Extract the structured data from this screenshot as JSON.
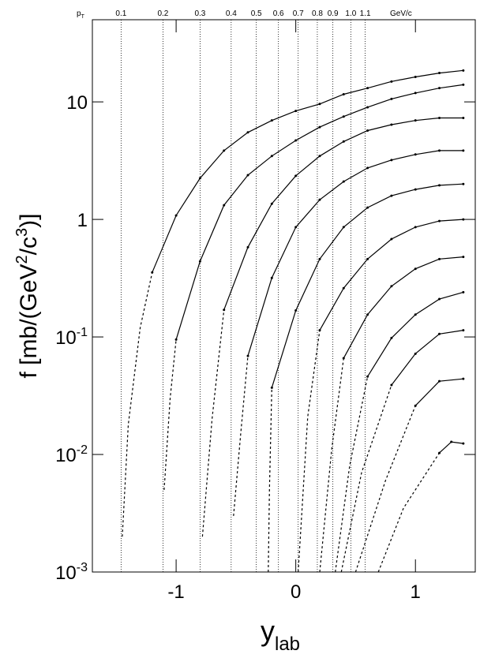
{
  "chart_data": {
    "type": "line",
    "log_y": true,
    "color": "#000000",
    "xlim": [
      -1.7,
      1.5
    ],
    "ylim": [
      0.001,
      50
    ],
    "xticks": [
      -1,
      0,
      1
    ],
    "yticks": [
      {
        "value": 0.001,
        "label": "10",
        "exponent": "-3"
      },
      {
        "value": 0.01,
        "label": "10",
        "exponent": "-2"
      },
      {
        "value": 0.1,
        "label": "10",
        "exponent": "-1"
      },
      1,
      10
    ],
    "ylabel_parts": [
      "f [mb/(GeV",
      "2",
      "/c",
      "3",
      ")]"
    ],
    "xlabel": "y",
    "xlabel_sub": "lab",
    "pt_title": "p",
    "pt_title_sub": "T",
    "pt_unit": "GeV/c",
    "pt_lines": [
      {
        "x": -1.46,
        "label": "0.1"
      },
      {
        "x": -1.11,
        "label": "0.2"
      },
      {
        "x": -0.8,
        "label": "0.3"
      },
      {
        "x": -0.54,
        "label": "0.4"
      },
      {
        "x": -0.33,
        "label": "0.5"
      },
      {
        "x": -0.145,
        "label": "0.6"
      },
      {
        "x": 0.02,
        "label": "0.7"
      },
      {
        "x": 0.18,
        "label": "0.8"
      },
      {
        "x": 0.31,
        "label": "0.9"
      },
      {
        "x": 0.46,
        "label": "1.0"
      },
      {
        "x": 0.58,
        "label": "1.1"
      }
    ],
    "series": [
      {
        "x": [
          -1.2,
          -1.0,
          -0.8,
          -0.6,
          -0.4,
          -0.2,
          0,
          0.2,
          0.4,
          0.6,
          0.8,
          1.0,
          1.2,
          1.4
        ],
        "values": [
          0.354,
          1.08,
          2.24,
          3.85,
          5.5,
          6.95,
          8.37,
          9.6,
          11.6,
          13.1,
          14.9,
          16.3,
          17.6,
          18.5
        ],
        "dashed_x": [
          -1.45,
          -1.4,
          -1.3,
          -1.2
        ],
        "dashed_values": [
          0.002,
          0.018,
          0.12,
          0.354
        ]
      },
      {
        "x": [
          -1.0,
          -0.8,
          -0.6,
          -0.4,
          -0.2,
          0,
          0.2,
          0.4,
          0.6,
          0.8,
          1.0,
          1.2,
          1.4
        ],
        "values": [
          0.095,
          0.44,
          1.32,
          2.38,
          3.46,
          4.7,
          6.1,
          7.5,
          9.0,
          10.6,
          11.9,
          13.1,
          14.0
        ],
        "dashed_x": [
          -1.1,
          -1.05,
          -1.0
        ],
        "dashed_values": [
          0.005,
          0.03,
          0.095
        ]
      },
      {
        "x": [
          -0.6,
          -0.4,
          -0.2,
          0,
          0.2,
          0.4,
          0.6,
          0.8,
          1.0,
          1.2,
          1.4
        ],
        "values": [
          0.17,
          0.58,
          1.36,
          2.35,
          3.46,
          4.6,
          5.7,
          6.4,
          6.95,
          7.3,
          7.3
        ],
        "dashed_x": [
          -0.78,
          -0.7,
          -0.6
        ],
        "dashed_values": [
          0.002,
          0.02,
          0.17
        ]
      },
      {
        "x": [
          -0.4,
          -0.2,
          0,
          0.2,
          0.4,
          0.6,
          0.8,
          1.0,
          1.2,
          1.4
        ],
        "values": [
          0.069,
          0.318,
          0.86,
          1.47,
          2.1,
          2.74,
          3.2,
          3.57,
          3.85,
          3.85
        ],
        "dashed_x": [
          -0.52,
          -0.46,
          -0.4
        ],
        "dashed_values": [
          0.003,
          0.015,
          0.069
        ]
      },
      {
        "x": [
          -0.2,
          0,
          0.2,
          0.4,
          0.6,
          0.8,
          1.0,
          1.2,
          1.4
        ],
        "values": [
          0.037,
          0.168,
          0.46,
          0.86,
          1.26,
          1.59,
          1.8,
          1.95,
          2.0
        ],
        "dashed_x": [
          -0.23,
          -0.22,
          -0.2
        ],
        "dashed_values": [
          0.001,
          0.005,
          0.037
        ]
      },
      {
        "x": [
          0.2,
          0.4,
          0.6,
          0.8,
          1.0,
          1.2,
          1.4
        ],
        "values": [
          0.114,
          0.26,
          0.46,
          0.68,
          0.86,
          0.97,
          1.0
        ],
        "dashed_x": [
          0.02,
          0.1,
          0.2
        ],
        "dashed_values": [
          0.001,
          0.021,
          0.114
        ]
      },
      {
        "x": [
          0.4,
          0.6,
          0.8,
          1.0,
          1.2,
          1.4
        ],
        "values": [
          0.066,
          0.155,
          0.27,
          0.38,
          0.46,
          0.48
        ],
        "dashed_x": [
          0.2,
          0.3,
          0.4
        ],
        "dashed_values": [
          0.001,
          0.011,
          0.066
        ]
      },
      {
        "x": [
          0.6,
          0.8,
          1.0,
          1.2,
          1.4
        ],
        "values": [
          0.046,
          0.098,
          0.155,
          0.21,
          0.24
        ],
        "dashed_x": [
          0.33,
          0.45,
          0.6
        ],
        "dashed_values": [
          0.001,
          0.008,
          0.046
        ]
      },
      {
        "x": [
          0.8,
          1.0,
          1.2,
          1.4
        ],
        "values": [
          0.039,
          0.072,
          0.106,
          0.114
        ],
        "dashed_x": [
          0.38,
          0.55,
          0.8
        ],
        "dashed_values": [
          0.001,
          0.007,
          0.039
        ]
      },
      {
        "x": [
          1.0,
          1.2,
          1.4
        ],
        "values": [
          0.026,
          0.042,
          0.044
        ],
        "dashed_x": [
          0.5,
          0.75,
          1.0
        ],
        "dashed_values": [
          0.001,
          0.006,
          0.026
        ]
      },
      {
        "x": [
          1.2,
          1.3,
          1.4
        ],
        "values": [
          0.0103,
          0.0128,
          0.0124
        ],
        "dashed_x": [
          0.69,
          0.9,
          1.2
        ],
        "dashed_values": [
          0.001,
          0.0035,
          0.0103
        ]
      }
    ]
  }
}
